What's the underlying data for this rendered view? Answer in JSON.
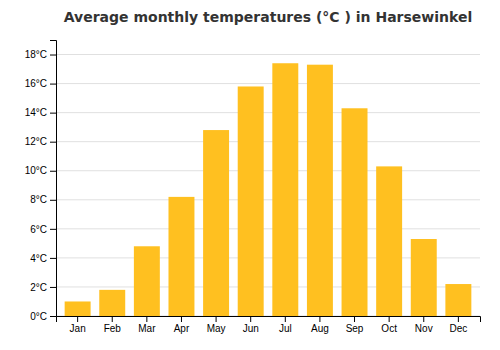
{
  "chart_data": {
    "type": "bar",
    "title": "Average monthly temperatures (°C ) in Harsewinkel",
    "categories": [
      "Jan",
      "Feb",
      "Mar",
      "Apr",
      "May",
      "Jun",
      "Jul",
      "Aug",
      "Sep",
      "Oct",
      "Nov",
      "Dec"
    ],
    "values": [
      1.0,
      1.8,
      4.8,
      8.2,
      12.8,
      15.8,
      17.4,
      17.3,
      14.3,
      10.3,
      5.3,
      2.2
    ],
    "color": "#FFC020",
    "ylim": [
      0,
      19
    ],
    "yticks": [
      {
        "value": 0,
        "label": "0°C"
      },
      {
        "value": 2,
        "label": "2°C"
      },
      {
        "value": 4,
        "label": "4°C"
      },
      {
        "value": 6,
        "label": "6°C"
      },
      {
        "value": 8,
        "label": "8°C"
      },
      {
        "value": 10,
        "label": "10°C"
      },
      {
        "value": 12,
        "label": "12°C"
      },
      {
        "value": 14,
        "label": "14°C"
      },
      {
        "value": 16,
        "label": "16°C"
      },
      {
        "value": 18,
        "label": "18°C"
      }
    ],
    "grid": true
  }
}
